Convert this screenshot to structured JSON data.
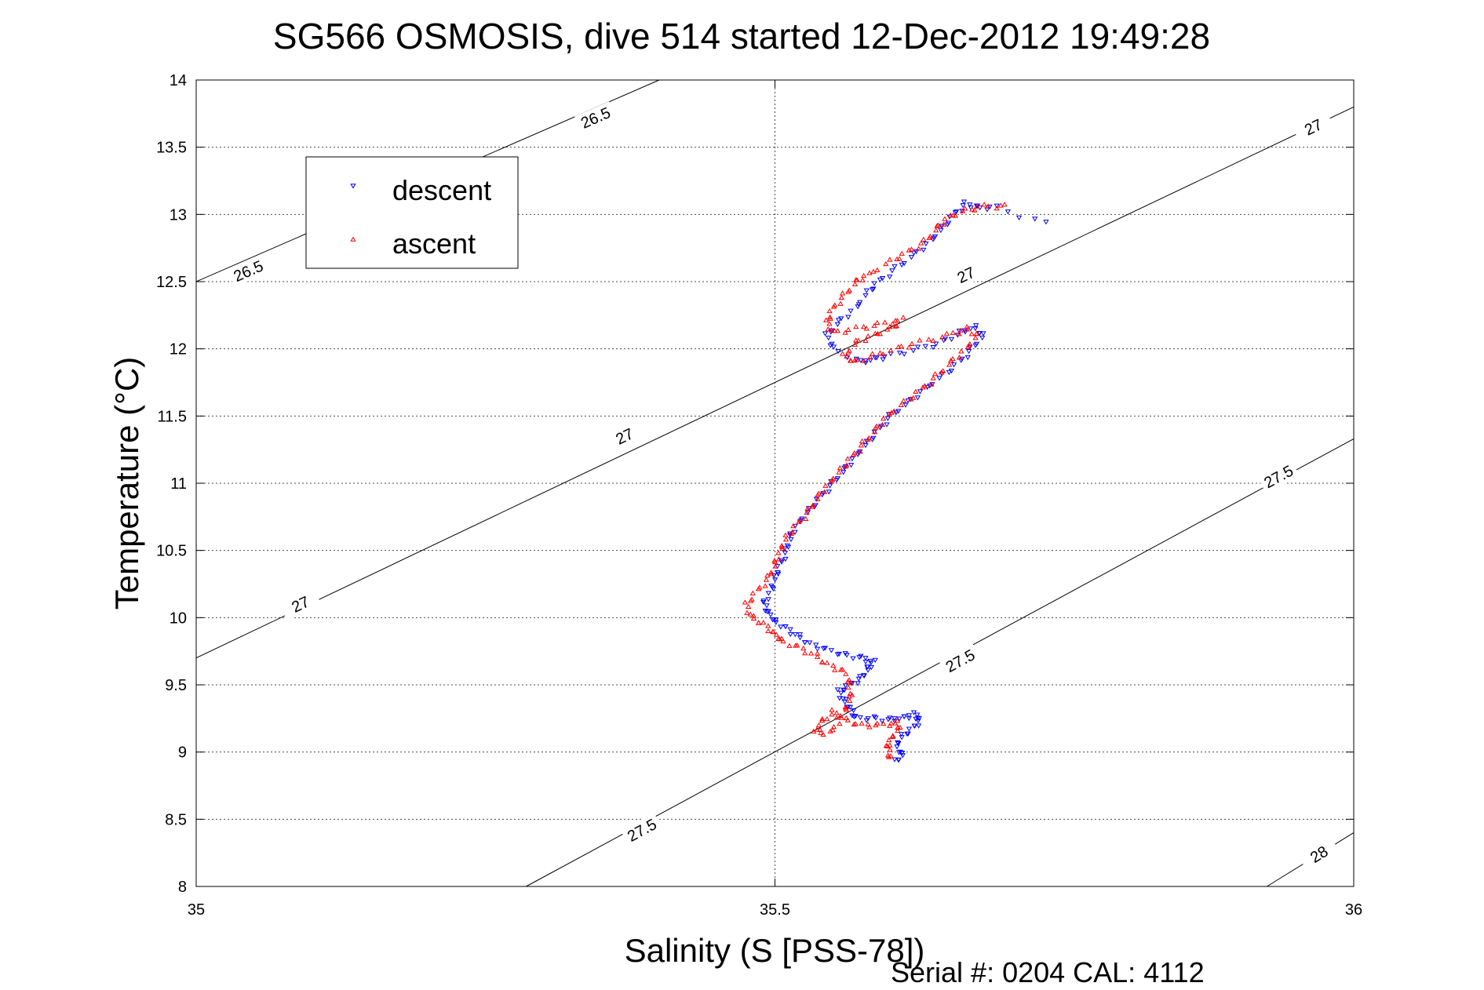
{
  "chart_data": {
    "type": "scatter",
    "title": "SG566 OSMOSIS, dive 514 started 12-Dec-2012 19:49:28",
    "xlabel": "Salinity (S [PSS-78])",
    "ylabel": "Temperature (°C)",
    "xlim": [
      35,
      36
    ],
    "ylim": [
      8,
      14
    ],
    "x_ticks": [
      "35",
      "35.5",
      "36"
    ],
    "y_ticks": [
      "8",
      "8.5",
      "9",
      "9.5",
      "10",
      "10.5",
      "11",
      "11.5",
      "12",
      "12.5",
      "13",
      "13.5",
      "14"
    ],
    "grid": true,
    "legend_position": "top-left",
    "footer": "Serial #: 0204  CAL: 4112",
    "contours": [
      {
        "level": "26.5",
        "points": [
          [
            35.0,
            12.5
          ],
          [
            35.4,
            14.0
          ]
        ],
        "labels": [
          [
            35.045,
            12.58
          ],
          [
            35.345,
            13.72
          ]
        ]
      },
      {
        "level": "27",
        "points": [
          [
            35.0,
            9.7
          ],
          [
            36.0,
            13.8
          ]
        ],
        "labels": [
          [
            35.09,
            10.1
          ],
          [
            35.37,
            11.35
          ],
          [
            35.665,
            12.55
          ],
          [
            35.965,
            13.65
          ]
        ]
      },
      {
        "level": "27.5",
        "points": [
          [
            35.285,
            8.0
          ],
          [
            36.0,
            11.33
          ]
        ],
        "labels": [
          [
            35.385,
            8.42
          ],
          [
            35.66,
            9.68
          ],
          [
            35.935,
            11.05
          ]
        ]
      },
      {
        "level": "28",
        "points": [
          [
            35.925,
            8.0
          ],
          [
            36.0,
            8.4
          ]
        ],
        "labels": [
          [
            35.97,
            8.24
          ]
        ]
      }
    ],
    "series": [
      {
        "name": "descent",
        "color": "#0000ff",
        "marker": "triangle-down",
        "points": [
          [
            35.605,
            8.93
          ],
          [
            35.61,
            8.98
          ],
          [
            35.605,
            9.05
          ],
          [
            35.61,
            9.12
          ],
          [
            35.62,
            9.18
          ],
          [
            35.625,
            9.24
          ],
          [
            35.62,
            9.28
          ],
          [
            35.61,
            9.25
          ],
          [
            35.6,
            9.24
          ],
          [
            35.585,
            9.25
          ],
          [
            35.57,
            9.25
          ],
          [
            35.565,
            9.32
          ],
          [
            35.56,
            9.38
          ],
          [
            35.555,
            9.45
          ],
          [
            35.565,
            9.5
          ],
          [
            35.575,
            9.55
          ],
          [
            35.58,
            9.62
          ],
          [
            35.585,
            9.67
          ],
          [
            35.575,
            9.7
          ],
          [
            35.56,
            9.72
          ],
          [
            35.545,
            9.76
          ],
          [
            35.53,
            9.8
          ],
          [
            35.52,
            9.86
          ],
          [
            35.51,
            9.92
          ],
          [
            35.5,
            9.97
          ],
          [
            35.495,
            10.03
          ],
          [
            35.49,
            10.1
          ],
          [
            35.497,
            10.2
          ],
          [
            35.5,
            10.3
          ],
          [
            35.505,
            10.4
          ],
          [
            35.51,
            10.5
          ],
          [
            35.513,
            10.6
          ],
          [
            35.52,
            10.7
          ],
          [
            35.53,
            10.8
          ],
          [
            35.54,
            10.9
          ],
          [
            35.55,
            11.0
          ],
          [
            35.56,
            11.1
          ],
          [
            35.57,
            11.2
          ],
          [
            35.58,
            11.3
          ],
          [
            35.59,
            11.4
          ],
          [
            35.6,
            11.5
          ],
          [
            35.615,
            11.6
          ],
          [
            35.63,
            11.7
          ],
          [
            35.645,
            11.8
          ],
          [
            35.66,
            11.9
          ],
          [
            35.67,
            12.0
          ],
          [
            35.68,
            12.1
          ],
          [
            35.672,
            12.16
          ],
          [
            35.66,
            12.12
          ],
          [
            35.645,
            12.05
          ],
          [
            35.625,
            12.0
          ],
          [
            35.6,
            11.95
          ],
          [
            35.585,
            11.92
          ],
          [
            35.575,
            11.9
          ],
          [
            35.55,
            12.0
          ],
          [
            35.545,
            12.1
          ],
          [
            35.555,
            12.2
          ],
          [
            35.57,
            12.3
          ],
          [
            35.58,
            12.42
          ],
          [
            35.59,
            12.5
          ],
          [
            35.605,
            12.6
          ],
          [
            35.62,
            12.7
          ],
          [
            35.635,
            12.8
          ],
          [
            35.645,
            12.9
          ],
          [
            35.655,
            13.0
          ],
          [
            35.665,
            13.08
          ],
          [
            35.675,
            13.05
          ],
          [
            35.69,
            13.05
          ],
          [
            35.735,
            12.93
          ]
        ]
      },
      {
        "name": "ascent",
        "color": "#ff0000",
        "marker": "triangle-up",
        "points": [
          [
            35.6,
            8.95
          ],
          [
            35.597,
            9.03
          ],
          [
            35.6,
            9.1
          ],
          [
            35.607,
            9.17
          ],
          [
            35.605,
            9.22
          ],
          [
            35.59,
            9.2
          ],
          [
            35.575,
            9.2
          ],
          [
            35.56,
            9.24
          ],
          [
            35.55,
            9.3
          ],
          [
            35.54,
            9.22
          ],
          [
            35.535,
            9.14
          ],
          [
            35.55,
            9.15
          ],
          [
            35.56,
            9.3
          ],
          [
            35.565,
            9.4
          ],
          [
            35.565,
            9.5
          ],
          [
            35.56,
            9.6
          ],
          [
            35.545,
            9.65
          ],
          [
            35.535,
            9.72
          ],
          [
            35.52,
            9.78
          ],
          [
            35.505,
            9.83
          ],
          [
            35.5,
            9.88
          ],
          [
            35.49,
            9.95
          ],
          [
            35.48,
            10.0
          ],
          [
            35.475,
            10.1
          ],
          [
            35.485,
            10.2
          ],
          [
            35.495,
            10.3
          ],
          [
            35.5,
            10.4
          ],
          [
            35.505,
            10.5
          ],
          [
            35.51,
            10.6
          ],
          [
            35.52,
            10.7
          ],
          [
            35.53,
            10.8
          ],
          [
            35.537,
            10.9
          ],
          [
            35.547,
            11.0
          ],
          [
            35.557,
            11.1
          ],
          [
            35.567,
            11.2
          ],
          [
            35.577,
            11.3
          ],
          [
            35.587,
            11.4
          ],
          [
            35.597,
            11.5
          ],
          [
            35.612,
            11.6
          ],
          [
            35.627,
            11.7
          ],
          [
            35.64,
            11.8
          ],
          [
            35.652,
            11.9
          ],
          [
            35.665,
            12.0
          ],
          [
            35.675,
            12.1
          ],
          [
            35.665,
            12.15
          ],
          [
            35.65,
            12.1
          ],
          [
            35.625,
            12.05
          ],
          [
            35.605,
            12.0
          ],
          [
            35.585,
            11.95
          ],
          [
            35.568,
            11.9
          ],
          [
            35.56,
            11.95
          ],
          [
            35.57,
            12.05
          ],
          [
            35.585,
            12.1
          ],
          [
            35.6,
            12.15
          ],
          [
            35.61,
            12.22
          ],
          [
            35.59,
            12.18
          ],
          [
            35.57,
            12.15
          ],
          [
            35.55,
            12.12
          ],
          [
            35.545,
            12.2
          ],
          [
            35.55,
            12.3
          ],
          [
            35.56,
            12.4
          ],
          [
            35.57,
            12.5
          ],
          [
            35.58,
            12.55
          ],
          [
            35.6,
            12.65
          ],
          [
            35.615,
            12.72
          ],
          [
            35.63,
            12.8
          ],
          [
            35.64,
            12.9
          ],
          [
            35.65,
            12.98
          ],
          [
            35.665,
            13.03
          ],
          [
            35.68,
            13.06
          ],
          [
            35.7,
            13.06
          ]
        ]
      }
    ]
  }
}
